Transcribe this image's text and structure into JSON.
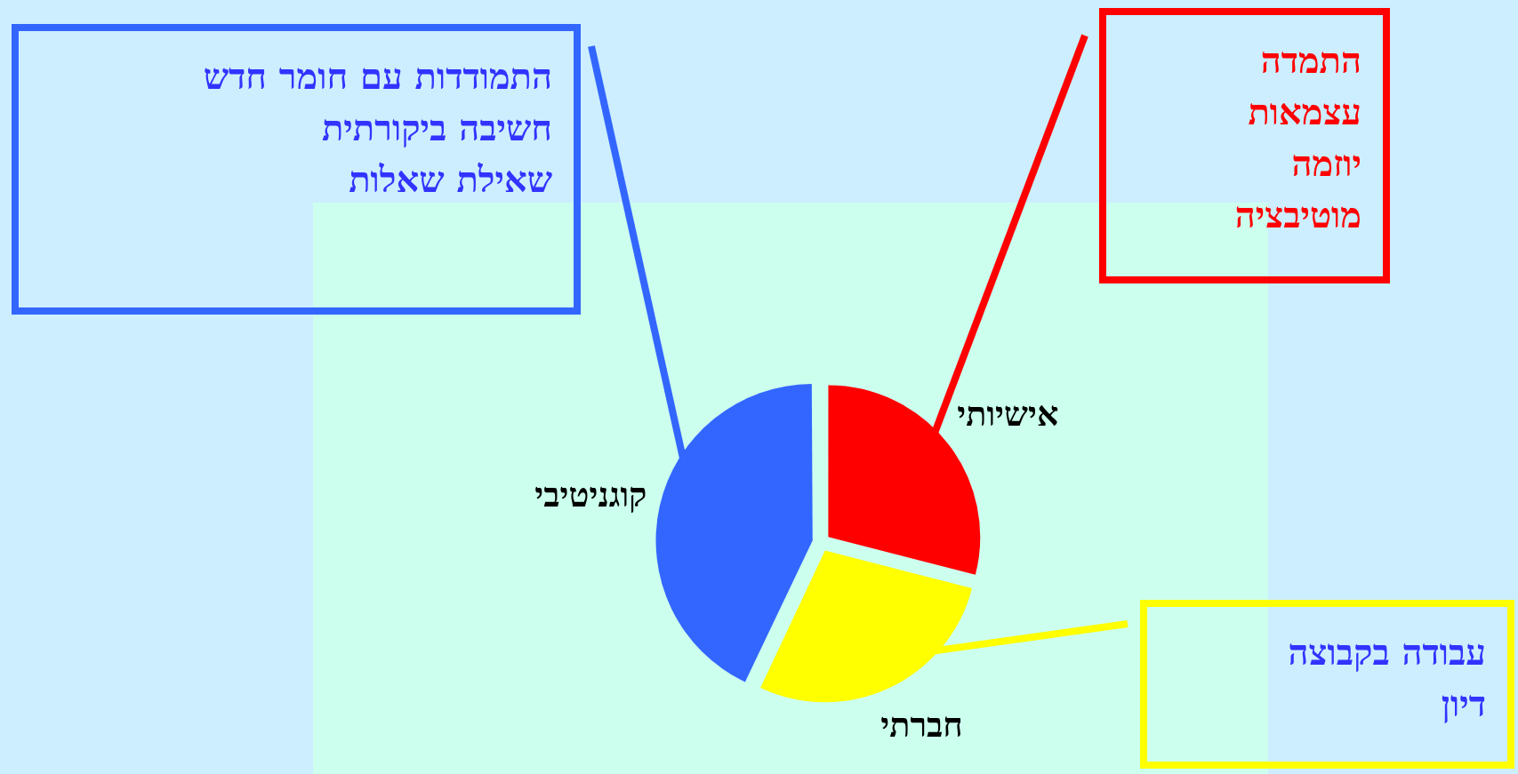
{
  "chart_data": {
    "type": "pie",
    "categories": [
      "אישיותי",
      "חברתי",
      "קוגניטיבי"
    ],
    "values": [
      29,
      28,
      43
    ],
    "colors": [
      "#ff0000",
      "#ffff00",
      "#3366ff"
    ],
    "annotations": [
      "התמדה\nעצמאות\nיוזמה\nמוטיבציה",
      "עבודה בקבוצה\nדיון",
      "התמודדות עם חומר חדש\nחשיבה ביקורתית\nשאילת שאלות"
    ]
  }
}
